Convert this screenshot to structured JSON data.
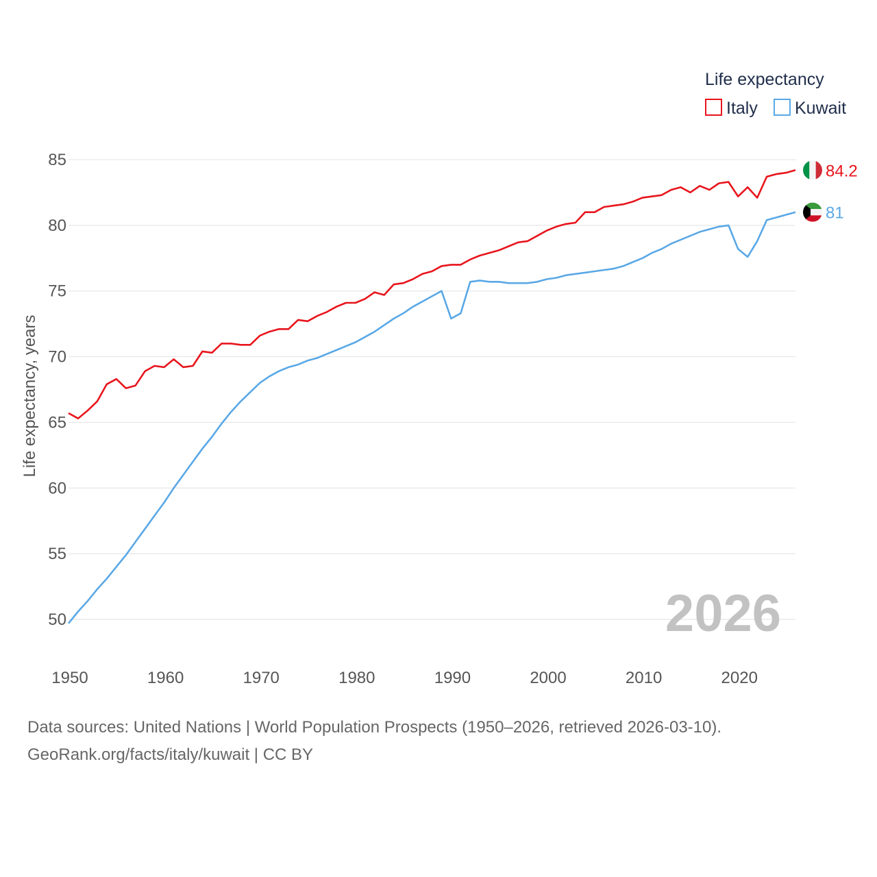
{
  "chart_data": {
    "type": "line",
    "legend_title": "Life expectancy",
    "ylabel": "Life expectancy, years",
    "xlabel": "",
    "ylim": [
      48,
      87
    ],
    "xlim": [
      1950,
      2026
    ],
    "y_ticks": [
      50,
      55,
      60,
      65,
      70,
      75,
      80,
      85
    ],
    "x_ticks": [
      1950,
      1960,
      1970,
      1980,
      1990,
      2000,
      2010,
      2020
    ],
    "current_year_label": "2026",
    "legend_position": "top-right",
    "x": [
      1950,
      1951,
      1952,
      1953,
      1954,
      1955,
      1956,
      1957,
      1958,
      1959,
      1960,
      1961,
      1962,
      1963,
      1964,
      1965,
      1966,
      1967,
      1968,
      1969,
      1970,
      1971,
      1972,
      1973,
      1974,
      1975,
      1976,
      1977,
      1978,
      1979,
      1980,
      1981,
      1982,
      1983,
      1984,
      1985,
      1986,
      1987,
      1988,
      1989,
      1990,
      1991,
      1992,
      1993,
      1994,
      1995,
      1996,
      1997,
      1998,
      1999,
      2000,
      2001,
      2002,
      2003,
      2004,
      2005,
      2006,
      2007,
      2008,
      2009,
      2010,
      2011,
      2012,
      2013,
      2014,
      2015,
      2016,
      2017,
      2018,
      2019,
      2020,
      2021,
      2022,
      2023,
      2024,
      2025,
      2026
    ],
    "series": [
      {
        "name": "Italy",
        "color": "#e8141c",
        "flag": "italy-flag",
        "end_label": "84.2",
        "values": [
          65.7,
          65.3,
          65.9,
          66.6,
          67.9,
          68.3,
          67.6,
          67.8,
          68.9,
          69.3,
          69.2,
          69.8,
          69.2,
          69.3,
          70.4,
          70.3,
          71.0,
          71.0,
          70.9,
          70.9,
          71.6,
          71.9,
          72.1,
          72.1,
          72.8,
          72.7,
          73.1,
          73.4,
          73.8,
          74.1,
          74.1,
          74.4,
          74.9,
          74.7,
          75.5,
          75.6,
          75.9,
          76.3,
          76.5,
          76.9,
          77.0,
          77.0,
          77.4,
          77.7,
          77.9,
          78.1,
          78.4,
          78.7,
          78.8,
          79.2,
          79.6,
          79.9,
          80.1,
          80.2,
          81.0,
          81.0,
          81.4,
          81.5,
          81.6,
          81.8,
          82.1,
          82.2,
          82.3,
          82.7,
          82.9,
          82.5,
          83.0,
          82.7,
          83.2,
          83.3,
          82.2,
          82.9,
          82.1,
          83.7,
          83.9,
          84.0,
          84.2
        ]
      },
      {
        "name": "Kuwait",
        "color": "#5aa8e6",
        "flag": "kuwait-flag",
        "end_label": "81",
        "values": [
          49.7,
          50.6,
          51.4,
          52.3,
          53.1,
          54.0,
          54.9,
          55.9,
          56.9,
          57.9,
          58.9,
          60.0,
          61.0,
          62.0,
          63.0,
          63.9,
          64.9,
          65.8,
          66.6,
          67.3,
          68.0,
          68.5,
          68.9,
          69.2,
          69.4,
          69.7,
          69.9,
          70.2,
          70.5,
          70.8,
          71.1,
          71.5,
          71.9,
          72.4,
          72.9,
          73.3,
          73.8,
          74.2,
          74.6,
          75.0,
          72.9,
          73.3,
          75.7,
          75.8,
          75.7,
          75.7,
          75.6,
          75.6,
          75.6,
          75.7,
          75.9,
          76.0,
          76.2,
          76.3,
          76.4,
          76.5,
          76.6,
          76.7,
          76.9,
          77.2,
          77.5,
          77.9,
          78.2,
          78.6,
          78.9,
          79.2,
          79.5,
          79.7,
          79.9,
          80.0,
          78.2,
          77.6,
          78.8,
          80.4,
          80.6,
          80.8,
          81.0
        ]
      }
    ]
  },
  "footer": {
    "source_line": "Data sources: United Nations | World Population Prospects (1950–2026, retrieved 2026-03-10).",
    "credit_line": "GeoRank.org/facts/italy/kuwait | CC BY"
  }
}
